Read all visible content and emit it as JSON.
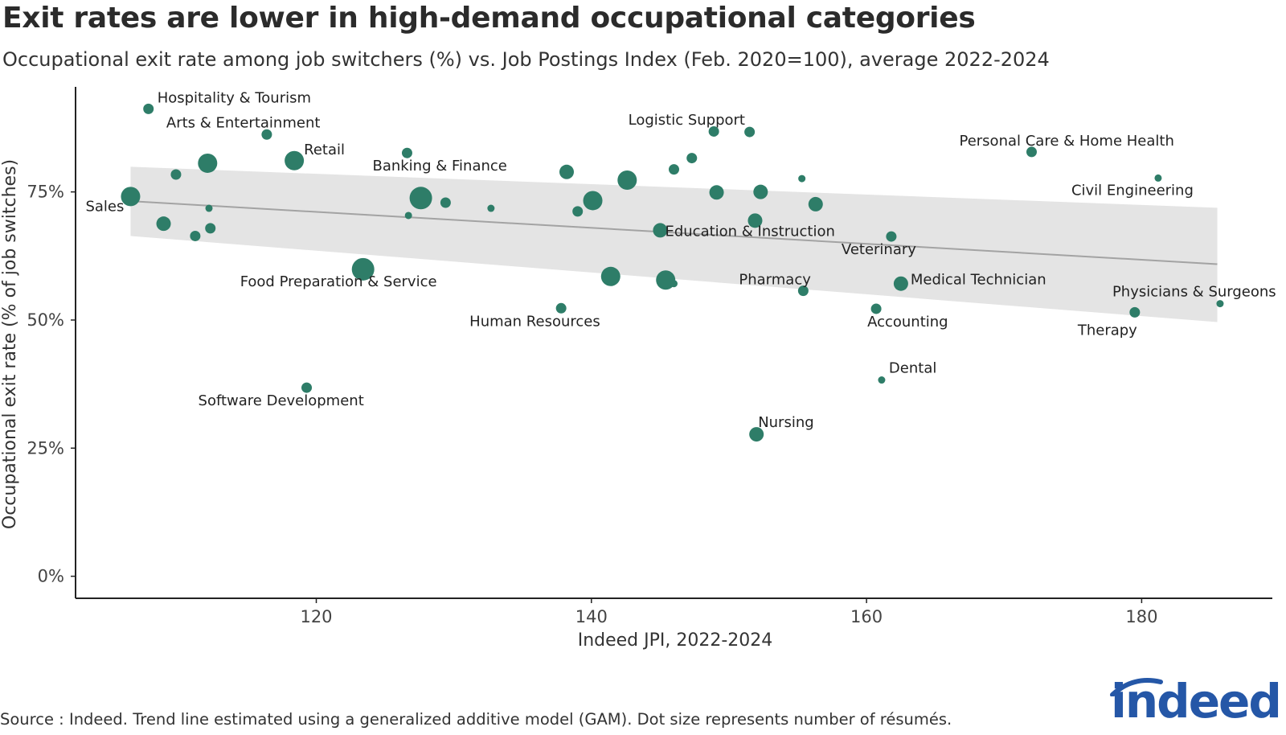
{
  "chart_data": {
    "type": "scatter",
    "title": "Exit rates are lower in high-demand occupational categories",
    "subtitle": "Occupational exit rate among job switchers (%) vs. Job Postings Index (Feb. 2020=100), average 2022-2024",
    "xlabel": "Indeed JPI, 2022-2024",
    "ylabel": "Occupational exit rate (% of job switches)",
    "xlim": [
      102.5,
      189.5
    ],
    "ylim": [
      -4.3,
      95.5
    ],
    "x_ticks": [
      120,
      140,
      160,
      180
    ],
    "y_ticks": [
      0,
      25,
      50,
      75
    ],
    "y_tick_labels": [
      "0%",
      "25%",
      "50%",
      "75%"
    ],
    "grid": false,
    "trend": {
      "x": [
        106.5,
        185.5
      ],
      "y": [
        73.2,
        60.9
      ],
      "band_upper": [
        79.9,
        71.9
      ],
      "band_lower": [
        66.4,
        49.6
      ]
    },
    "points": [
      {
        "label": "Hospitality & Tourism",
        "x": 107.8,
        "y": 91.2,
        "size": 1
      },
      {
        "label": "Arts & Entertainment",
        "x": 116.4,
        "y": 86.2,
        "size": 1
      },
      {
        "label": "",
        "x": 112.1,
        "y": 80.6,
        "size": 3
      },
      {
        "label": "",
        "x": 109.8,
        "y": 78.4,
        "size": 1
      },
      {
        "label": "Retail",
        "x": 118.4,
        "y": 81.1,
        "size": 3
      },
      {
        "label": "Sales",
        "x": 106.5,
        "y": 74.1,
        "size": 3
      },
      {
        "label": "",
        "x": 108.9,
        "y": 68.8,
        "size": 2
      },
      {
        "label": "",
        "x": 112.2,
        "y": 71.8,
        "size": 0
      },
      {
        "label": "",
        "x": 112.3,
        "y": 67.9,
        "size": 1
      },
      {
        "label": "",
        "x": 111.2,
        "y": 66.4,
        "size": 1
      },
      {
        "label": "Banking & Finance",
        "x": 126.6,
        "y": 82.6,
        "size": 1
      },
      {
        "label": "",
        "x": 127.6,
        "y": 73.8,
        "size": 4
      },
      {
        "label": "",
        "x": 126.7,
        "y": 70.4,
        "size": 0
      },
      {
        "label": "",
        "x": 129.4,
        "y": 72.9,
        "size": 1
      },
      {
        "label": "",
        "x": 132.7,
        "y": 71.8,
        "size": 0
      },
      {
        "label": "Food Preparation & Service",
        "x": 123.4,
        "y": 59.9,
        "size": 4
      },
      {
        "label": "Software Development",
        "x": 119.3,
        "y": 36.8,
        "size": 1
      },
      {
        "label": "",
        "x": 138.2,
        "y": 78.9,
        "size": 2
      },
      {
        "label": "",
        "x": 142.6,
        "y": 77.3,
        "size": 3
      },
      {
        "label": "",
        "x": 140.1,
        "y": 73.3,
        "size": 3
      },
      {
        "label": "",
        "x": 139.0,
        "y": 71.2,
        "size": 1
      },
      {
        "label": "",
        "x": 146.0,
        "y": 79.4,
        "size": 1
      },
      {
        "label": "",
        "x": 147.3,
        "y": 81.6,
        "size": 1
      },
      {
        "label": "",
        "x": 148.9,
        "y": 86.8,
        "size": 1
      },
      {
        "label": "Logistic Support",
        "x": 151.5,
        "y": 86.7,
        "size": 1
      },
      {
        "label": "",
        "x": 149.1,
        "y": 74.9,
        "size": 2
      },
      {
        "label": "",
        "x": 152.3,
        "y": 75.0,
        "size": 2
      },
      {
        "label": "",
        "x": 155.3,
        "y": 77.6,
        "size": 0
      },
      {
        "label": "",
        "x": 156.3,
        "y": 72.6,
        "size": 2
      },
      {
        "label": "Education & Instruction",
        "x": 151.9,
        "y": 69.4,
        "size": 2
      },
      {
        "label": "",
        "x": 145.0,
        "y": 67.5,
        "size": 2
      },
      {
        "label": "",
        "x": 141.4,
        "y": 58.5,
        "size": 3
      },
      {
        "label": "",
        "x": 145.4,
        "y": 57.8,
        "size": 3
      },
      {
        "label": "",
        "x": 146.0,
        "y": 57.1,
        "size": 0
      },
      {
        "label": "Human Resources",
        "x": 137.8,
        "y": 52.3,
        "size": 1
      },
      {
        "label": "Pharmacy",
        "x": 155.4,
        "y": 55.7,
        "size": 1
      },
      {
        "label": "Nursing",
        "x": 152.0,
        "y": 27.7,
        "size": 2
      },
      {
        "label": "Veterinary",
        "x": 161.8,
        "y": 66.3,
        "size": 1
      },
      {
        "label": "Medical Technician",
        "x": 162.5,
        "y": 57.1,
        "size": 2
      },
      {
        "label": "Accounting",
        "x": 160.7,
        "y": 52.2,
        "size": 1
      },
      {
        "label": "Dental",
        "x": 161.1,
        "y": 38.3,
        "size": 0
      },
      {
        "label": "Personal Care & Home Health",
        "x": 172.0,
        "y": 82.8,
        "size": 1
      },
      {
        "label": "Civil Engineering",
        "x": 181.2,
        "y": 77.7,
        "size": 0
      },
      {
        "label": "Physicians & Surgeons",
        "x": 185.7,
        "y": 53.2,
        "size": 0
      },
      {
        "label": "Therapy",
        "x": 179.5,
        "y": 51.5,
        "size": 1
      }
    ]
  },
  "chart_title": "Exit rates are lower in high-demand occupational categories",
  "chart_subtitle": "Occupational exit rate among job switchers (%) vs. Job Postings Index (Feb. 2020=100), average 2022-2024",
  "caption": "Source : Indeed. Trend line estimated using a generalized additive model (GAM). Dot size represents number of résumés.",
  "logo_text": "indeed",
  "colors": {
    "dot": "#2e7d68",
    "band": "#e4e4e4",
    "trend": "#a3a3a3",
    "axis": "#222222",
    "logo": "#2557a7"
  }
}
